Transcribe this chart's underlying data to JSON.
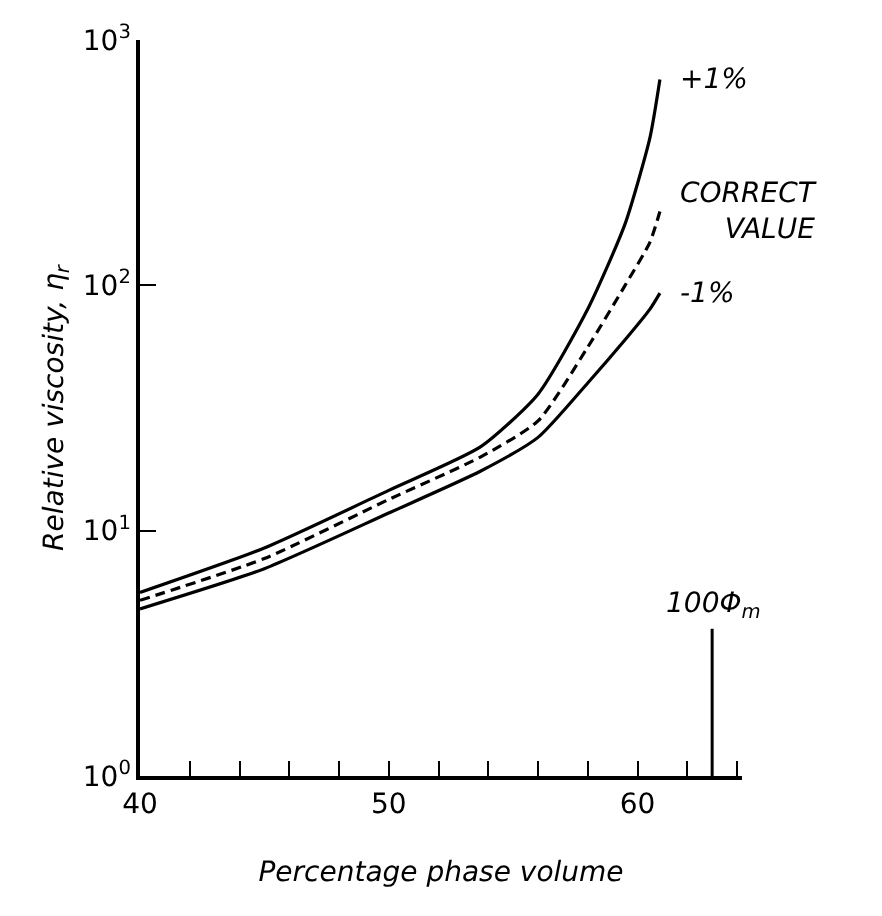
{
  "chart_data": {
    "type": "line",
    "xlabel": "Percentage phase volume",
    "ylabel": "Relative viscosity, η$_{r}$",
    "log": "y",
    "grid": false,
    "legend": false,
    "marker": "none",
    "xlim": [
      40,
      64.2
    ],
    "xticks": [
      40,
      {
        "value": 42,
        "label": null
      },
      {
        "value": 44,
        "label": null
      },
      {
        "value": 46,
        "label": null
      },
      {
        "value": 48,
        "label": null
      },
      50,
      {
        "value": 52,
        "label": null
      },
      {
        "value": 54,
        "label": null
      },
      {
        "value": 56,
        "label": null
      },
      {
        "value": 58,
        "label": null
      },
      60,
      {
        "value": 62,
        "label": null
      },
      {
        "value": 64,
        "label": null
      }
    ],
    "ylim": [
      1,
      1000
    ],
    "yticks": [
      {
        "value": 1,
        "label": "10$^{0}$"
      },
      {
        "value": 10,
        "label": "10$^{1}$"
      },
      {
        "value": 100,
        "label": "10$^{2}$"
      },
      {
        "value": 1000,
        "label": "10$^{3}$"
      }
    ],
    "x": [
      40,
      45,
      50,
      53.7,
      56,
      58,
      59.5,
      60.5,
      60.9
    ],
    "series": [
      {
        "name": "+1%",
        "color": "#000000",
        "line_style": "solid",
        "values": [
          5.6,
          8.5,
          14.6,
          22,
          36,
          80,
          178,
          400,
          690
        ]
      },
      {
        "name": "CORRECT VALUE",
        "color": "#000000",
        "line_style": "dashed",
        "values": [
          5.2,
          7.7,
          13.4,
          20,
          28,
          56,
          100,
          150,
          200
        ]
      },
      {
        "name": "-1%",
        "color": "#000000",
        "line_style": "solid",
        "values": [
          4.8,
          7.0,
          11.8,
          17.5,
          24,
          40,
          60,
          80,
          93
        ]
      }
    ],
    "ref_lines": [
      {
        "axis": "x",
        "value": 63,
        "label": "100Φ$_{m}$",
        "color": "#000000"
      }
    ]
  }
}
